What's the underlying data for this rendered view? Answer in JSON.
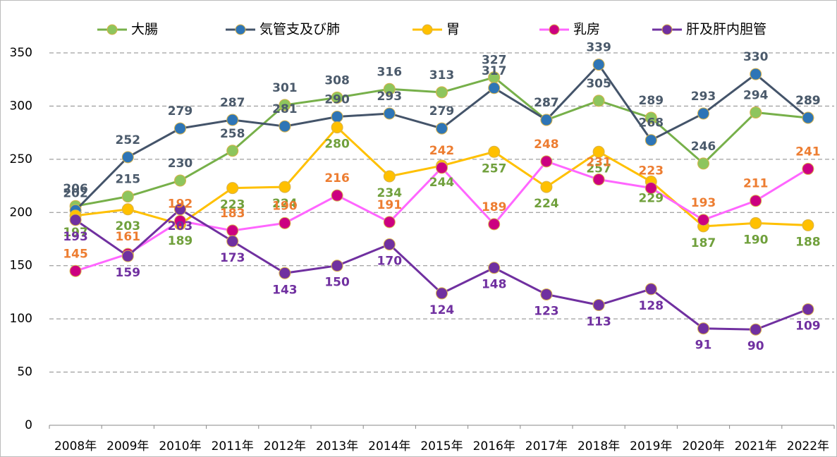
{
  "chart_data": {
    "type": "line",
    "categories": [
      "2008年",
      "2009年",
      "2010年",
      "2011年",
      "2012年",
      "2013年",
      "2014年",
      "2015年",
      "2016年",
      "2017年",
      "2018年",
      "2019年",
      "2020年",
      "2021年",
      "2022年"
    ],
    "series": [
      {
        "name": "大腸",
        "color": "#77b04a",
        "marker_color": "#8ec55d",
        "label_color": "#4b5a6b",
        "values": [
          206,
          215,
          230,
          258,
          301,
          308,
          316,
          313,
          327,
          287,
          305,
          289,
          246,
          294,
          289
        ]
      },
      {
        "name": "気管支及び肺",
        "color": "#44546a",
        "marker_color": "#2e75b6",
        "label_color": "#4b5a6b",
        "values": [
          202,
          252,
          279,
          287,
          281,
          290,
          293,
          279,
          317,
          287,
          339,
          268,
          293,
          330,
          289
        ]
      },
      {
        "name": "胃",
        "color": "#ffc000",
        "marker_color": "#ffc000",
        "label_color": "#70a03c",
        "values": [
          197,
          203,
          189,
          223,
          224,
          280,
          234,
          244,
          257,
          224,
          257,
          229,
          187,
          190,
          188
        ]
      },
      {
        "name": "乳房",
        "color": "#ff66ff",
        "marker_color": "#cc0080",
        "label_color": "#ed7d31",
        "values": [
          145,
          161,
          192,
          183,
          190,
          216,
          191,
          242,
          189,
          248,
          231,
          223,
          193,
          211,
          241
        ]
      },
      {
        "name": "肝及肝内胆管",
        "color": "#7030a0",
        "marker_color": "#7030a0",
        "label_color": "#7030a0",
        "values": [
          193,
          159,
          203,
          173,
          143,
          150,
          170,
          124,
          148,
          123,
          113,
          128,
          91,
          90,
          109
        ]
      }
    ],
    "ylim": [
      0,
      350
    ],
    "yticks": [
      0,
      50,
      100,
      150,
      200,
      250,
      300,
      350
    ],
    "grid": true,
    "legend": "top"
  }
}
